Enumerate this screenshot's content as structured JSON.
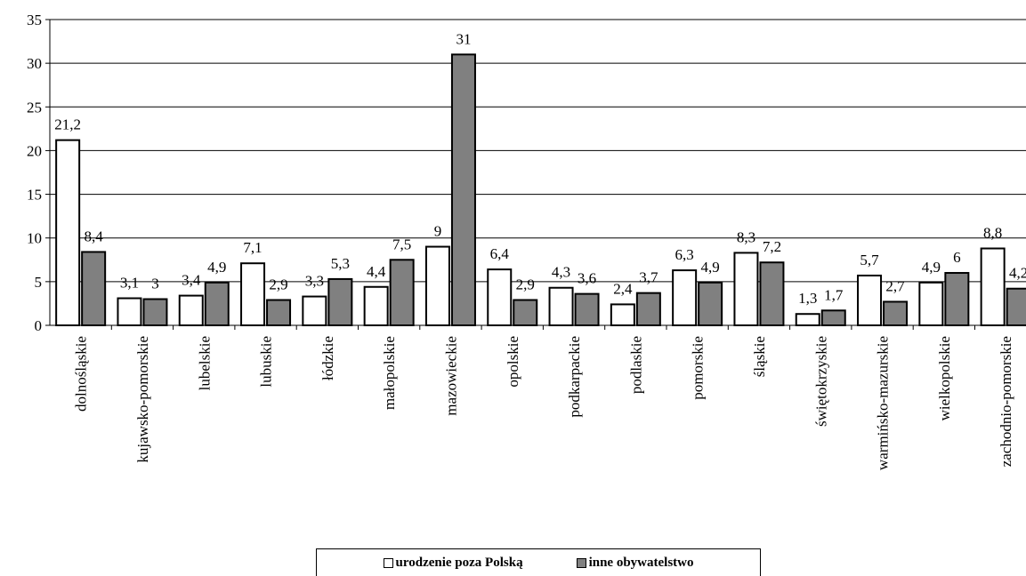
{
  "chart_data": {
    "type": "bar",
    "categories": [
      "dolnośląskie",
      "kujawsko-pomorskie",
      "lubelskie",
      "lubuskie",
      "łódzkie",
      "małopolskie",
      "mazowieckie",
      "opolskie",
      "podkarpackie",
      "podlaskie",
      "pomorskie",
      "śląskie",
      "świętokrzyskie",
      "warmińsko-mazurskie",
      "wielkopolskie",
      "zachodnio-pomorskie"
    ],
    "series": [
      {
        "name": "urodzenie poza Polską",
        "color": "#ffffff",
        "values": [
          21.2,
          3.1,
          3.4,
          7.1,
          3.3,
          4.4,
          9,
          6.4,
          4.3,
          2.4,
          6.3,
          8.3,
          1.3,
          5.7,
          4.9,
          8.8
        ],
        "labels": [
          "21,2",
          "3,1",
          "3,4",
          "7,1",
          "3,3",
          "4,4",
          "9",
          "6,4",
          "4,3",
          "2,4",
          "6,3",
          "8,3",
          "1,3",
          "5,7",
          "4,9",
          "8,8"
        ]
      },
      {
        "name": "inne obywatelstwo",
        "color": "#808080",
        "values": [
          8.4,
          3,
          4.9,
          2.9,
          5.3,
          7.5,
          31,
          2.9,
          3.6,
          3.7,
          4.9,
          7.2,
          1.7,
          2.7,
          6,
          4.2
        ],
        "labels": [
          "8,4",
          "3",
          "4,9",
          "2,9",
          "5,3",
          "7,5",
          "31",
          "2,9",
          "3,6",
          "3,7",
          "4,9",
          "7,2",
          "1,7",
          "2,7",
          "6",
          "4,2"
        ]
      }
    ],
    "yticks": [
      "0",
      "5",
      "10",
      "15",
      "20",
      "25",
      "30",
      "35"
    ],
    "ylim": [
      0,
      35
    ],
    "grid": true,
    "legend_position": "bottom"
  }
}
